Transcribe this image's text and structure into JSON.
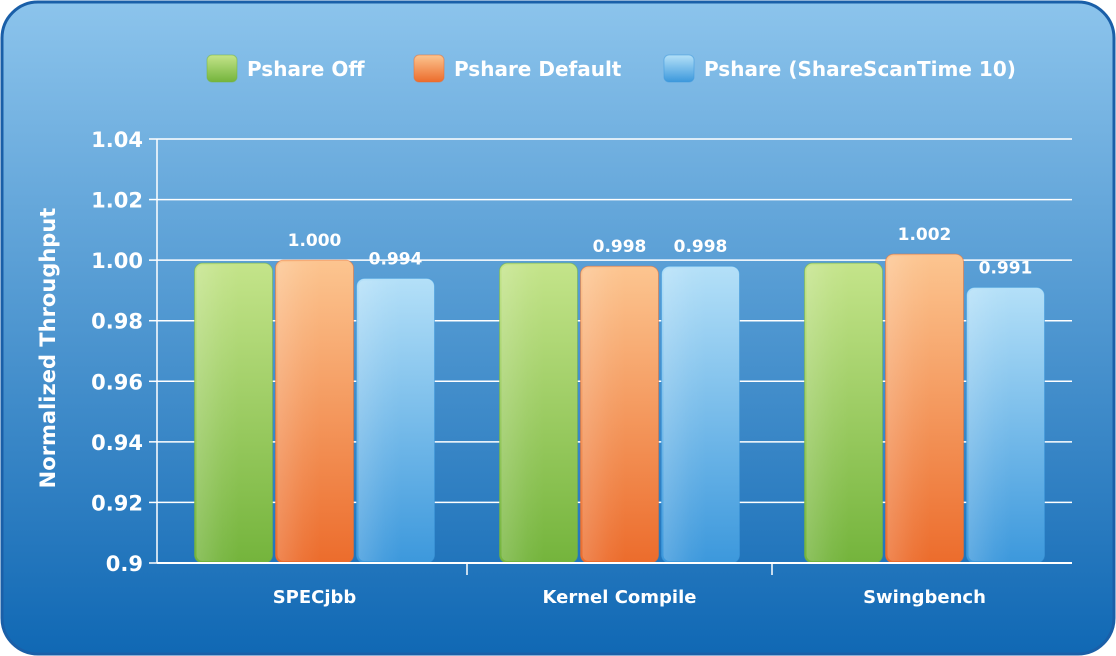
{
  "chart_data": {
    "type": "bar",
    "title": "",
    "xlabel": "",
    "ylabel": "Normalized Throughput",
    "ylim": [
      0.9,
      1.04
    ],
    "yticks": [
      0.9,
      0.92,
      0.94,
      0.96,
      0.98,
      1.0,
      1.02,
      1.04
    ],
    "ytick_labels": [
      "0.9",
      "0.92",
      "0.94",
      "0.96",
      "0.98",
      "1.00",
      "1.02",
      "1.04"
    ],
    "grid": true,
    "legend_position": "top",
    "categories": [
      "SPECjbb",
      "Kernel Compile",
      "Swingbench"
    ],
    "series": [
      {
        "name": "Pshare Off",
        "values": [
          0.999,
          0.999,
          0.999
        ],
        "data_labels": [
          "",
          "",
          ""
        ],
        "color_light": "#c4e48a",
        "color_dark": "#74b43c"
      },
      {
        "name": "Pshare Default",
        "values": [
          1.0,
          0.998,
          1.002
        ],
        "data_labels": [
          "1.000",
          "0.998",
          "1.002"
        ],
        "color_light": "#fcc590",
        "color_dark": "#ec6c2c"
      },
      {
        "name": "Pshare (ShareScanTime 10)",
        "values": [
          0.994,
          0.998,
          0.991
        ],
        "data_labels": [
          "0.994",
          "0.998",
          "0.991"
        ],
        "color_light": "#b4e0f8",
        "color_dark": "#3c98dc"
      }
    ]
  },
  "colors": {
    "panel_top": "#8cc4ec",
    "panel_bottom": "#1068b4",
    "panel_border": "#1a5fa8",
    "text": "#ffffff"
  }
}
